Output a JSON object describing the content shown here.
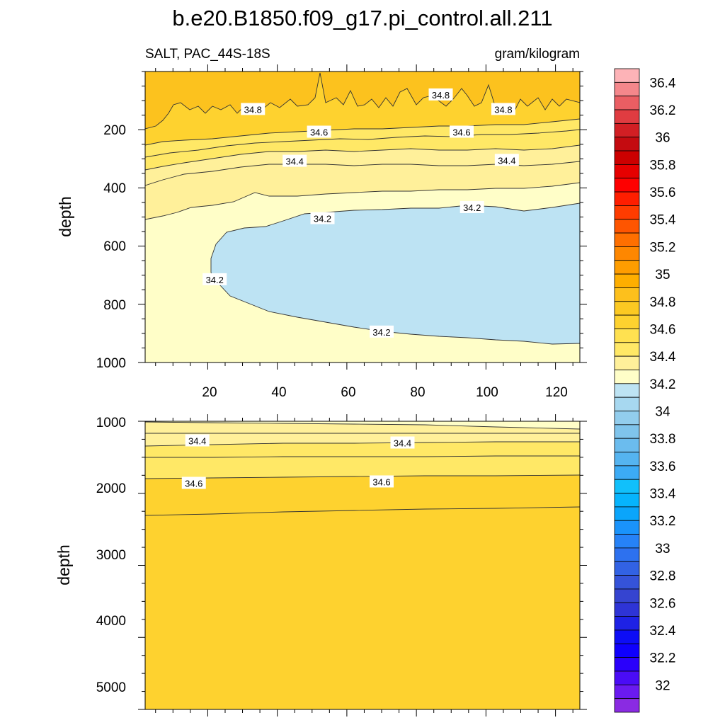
{
  "chart_data": {
    "type": "contour",
    "title": "b.e20.B1850.f09_g17.pi_control.all.211",
    "left_subtitle": "SALT, PAC_44S-18S",
    "right_subtitle": "gram/kilogram",
    "colors": {
      "c32": "#8a2be2",
      "c34": "#bde3f3",
      "c342": "#fffec8",
      "c344": "#fff09a",
      "c346": "#ffe866",
      "c348": "#fed22f",
      "c35": "#fcc21e",
      "c364": "#fdb3b7"
    },
    "panels": [
      {
        "name": "upper",
        "ylabel": "depth",
        "xlim": [
          2,
          127
        ],
        "ylim": [
          1000,
          0
        ],
        "yticks": [
          "200",
          "400",
          "600",
          "800",
          "1000"
        ],
        "xticks": [
          "20",
          "40",
          "60",
          "80",
          "100",
          "120"
        ],
        "contour_labels": [
          {
            "text": "34.8",
            "x": 33,
            "y": 130
          },
          {
            "text": "34.8",
            "x": 87,
            "y": 80
          },
          {
            "text": "34.8",
            "x": 105,
            "y": 130
          },
          {
            "text": "34.6",
            "x": 52,
            "y": 208
          },
          {
            "text": "34.6",
            "x": 93,
            "y": 208
          },
          {
            "text": "34.4",
            "x": 45,
            "y": 308
          },
          {
            "text": "34.4",
            "x": 106,
            "y": 305
          },
          {
            "text": "34.2",
            "x": 53,
            "y": 505
          },
          {
            "text": "34.2",
            "x": 96,
            "y": 467
          },
          {
            "text": "34.2",
            "x": 22,
            "y": 715
          },
          {
            "text": "34.2",
            "x": 70,
            "y": 895
          }
        ]
      },
      {
        "name": "lower",
        "ylabel": "depth",
        "xlim": [
          2,
          127
        ],
        "ylim": [
          5000,
          1000
        ],
        "yticks": [
          "1000",
          "2000",
          "3000",
          "4000",
          "5000"
        ],
        "contour_labels": [
          {
            "text": "34.4",
            "x": 17,
            "y": 1270
          },
          {
            "text": "34.4",
            "x": 76,
            "y": 1300
          },
          {
            "text": "34.6",
            "x": 16,
            "y": 1860
          },
          {
            "text": "34.6",
            "x": 70,
            "y": 1840
          }
        ]
      }
    ],
    "colorbar": {
      "labels": [
        "36.4",
        "36.2",
        "36",
        "35.8",
        "35.6",
        "35.4",
        "35.2",
        "35",
        "34.8",
        "34.6",
        "34.4",
        "34.2",
        "34",
        "33.8",
        "33.6",
        "33.4",
        "33.2",
        "33",
        "32.8",
        "32.6",
        "32.4",
        "32.2",
        "32"
      ],
      "colors": [
        "#fdb3b7",
        "#f4878b",
        "#ea5e63",
        "#e03c41",
        "#d21f24",
        "#c40b10",
        "#cc0000",
        "#e60000",
        "#fe0000",
        "#fe1e00",
        "#fe3c00",
        "#fe5500",
        "#fe6f00",
        "#fe8700",
        "#fe9d00",
        "#feae00",
        "#fdc01c",
        "#fcc922",
        "#fed22f",
        "#ffe150",
        "#ffe866",
        "#fff09a",
        "#fffec8",
        "#bde3f3",
        "#a7d8f0",
        "#92cded",
        "#7fc4ec",
        "#6bbcee",
        "#55b4f0",
        "#3cabf5",
        "#11c0fb",
        "#06b4fd",
        "#0aa5fb",
        "#1a93fb",
        "#2682f7",
        "#2d71ef",
        "#3262e4",
        "#3553d9",
        "#3544d0",
        "#2e34d6",
        "#1e22e5",
        "#0d0df6",
        "#0f00fd",
        "#2a00fb",
        "#4a0cf6",
        "#6a1af0",
        "#8a2be2"
      ]
    }
  }
}
